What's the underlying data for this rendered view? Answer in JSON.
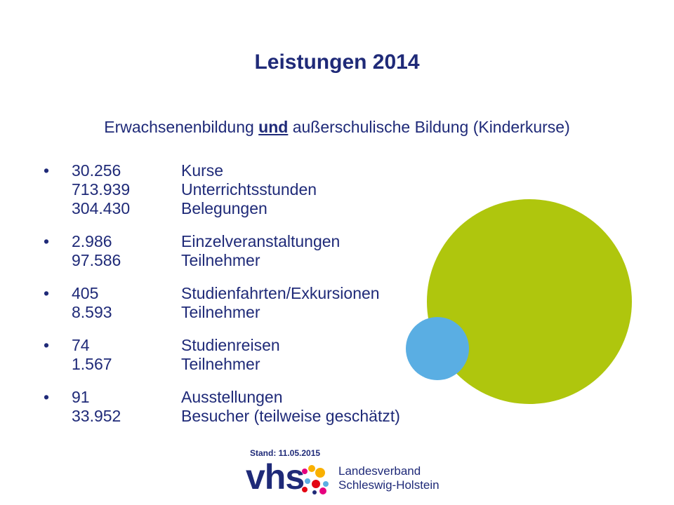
{
  "title": "Leistungen 2014",
  "subtitle": {
    "part1": "Erwachsenenbildung ",
    "emphasis": "und",
    "part2": " außerschulische Bildung (Kinderkurse)"
  },
  "bullet_char": "•",
  "groups": [
    {
      "rows": [
        {
          "value": "30.256",
          "label": "Kurse"
        },
        {
          "value": "713.939",
          "label": "Unterrichtsstunden"
        },
        {
          "value": "304.430",
          "label": "Belegungen"
        }
      ]
    },
    {
      "rows": [
        {
          "value": "2.986",
          "label": "Einzelveranstaltungen"
        },
        {
          "value": "97.586",
          "label": "Teilnehmer"
        }
      ]
    },
    {
      "rows": [
        {
          "value": "405",
          "label": "Studienfahrten/Exkursionen"
        },
        {
          "value": "8.593",
          "label": "Teilnehmer"
        }
      ]
    },
    {
      "rows": [
        {
          "value": "74",
          "label": "Studienreisen"
        },
        {
          "value": "1.567",
          "label": "Teilnehmer"
        }
      ]
    },
    {
      "rows": [
        {
          "value": "91",
          "label": "Ausstellungen"
        },
        {
          "value": "33.952",
          "label": "Besucher (teilweise geschätzt)"
        }
      ]
    }
  ],
  "stand": "Stand: 11.05.2015",
  "logo": {
    "mark": "vhs",
    "line1": "Landesverband",
    "line2": "Schleswig-Holstein"
  },
  "colors": {
    "text": "#1f2a78",
    "green_circle": "#afc60d",
    "blue_circle": "#5aaee3"
  }
}
